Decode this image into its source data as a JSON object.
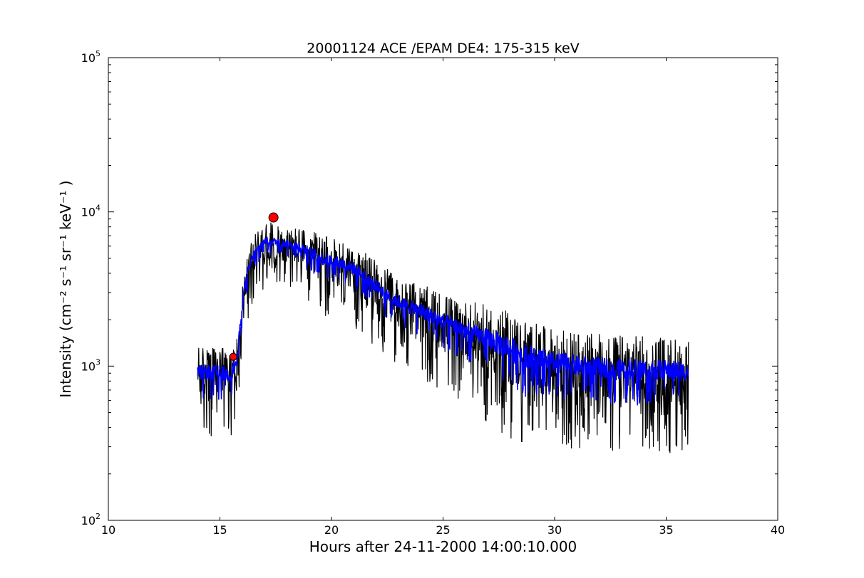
{
  "chart_data": {
    "type": "line",
    "title": "20001124 ACE /EPAM DE4: 175-315 keV",
    "xlabel": "Hours after 24-11-2000 14:00:10.000",
    "ylabel": "Intensity (cm⁻² s⁻¹ sr⁻¹ keV⁻¹ )",
    "xlim": [
      10,
      40
    ],
    "ylim": [
      100,
      100000
    ],
    "yscale": "log",
    "grid": false,
    "xticks": [
      "10",
      "15",
      "20",
      "25",
      "30",
      "35",
      "40"
    ],
    "yticks": [
      {
        "base": "10",
        "exp": "2"
      },
      {
        "base": "10",
        "exp": "3"
      },
      {
        "base": "10",
        "exp": "4"
      },
      {
        "base": "10",
        "exp": "5"
      }
    ],
    "colors": {
      "raw": "#000000",
      "smoothed": "#0000ff",
      "marker": "#ff0000"
    },
    "series": [
      {
        "style": "raw",
        "color": "#000000",
        "envelope": {
          "x": [
            14.0,
            14.5,
            15.0,
            15.5,
            15.8,
            16.0,
            16.2,
            16.5,
            17.0,
            17.5,
            18.0,
            18.5,
            19.0,
            19.5,
            20.0,
            20.5,
            21.0,
            21.5,
            22.0,
            22.5,
            23.0,
            23.5,
            24.0,
            24.5,
            25.0,
            25.5,
            26.0,
            26.5,
            27.0,
            27.5,
            28.0,
            28.5,
            29.0,
            29.5,
            30.0,
            30.5,
            31.0,
            31.5,
            32.0,
            32.5,
            33.0,
            33.5,
            34.0,
            34.5,
            35.0,
            35.5,
            36.0
          ],
          "center": [
            900,
            920,
            900,
            880,
            1100,
            2500,
            3800,
            5200,
            6500,
            6400,
            6200,
            6000,
            5500,
            5000,
            4800,
            4600,
            4300,
            3800,
            3300,
            2900,
            2600,
            2400,
            2300,
            2100,
            1950,
            1850,
            1700,
            1600,
            1500,
            1400,
            1300,
            1200,
            1150,
            1100,
            1050,
            1050,
            1000,
            1000,
            980,
            980,
            960,
            960,
            950,
            950,
            940,
            930,
            920
          ],
          "spread": [
            1.9,
            1.9,
            1.9,
            1.9,
            1.8,
            1.7,
            1.6,
            1.6,
            1.6,
            1.6,
            1.5,
            1.6,
            1.7,
            1.8,
            1.8,
            1.8,
            1.8,
            1.8,
            1.9,
            1.9,
            1.9,
            1.9,
            1.9,
            2.0,
            2.0,
            2.0,
            2.1,
            2.2,
            2.3,
            2.4,
            2.5,
            2.5,
            2.4,
            2.3,
            2.3,
            2.3,
            2.3,
            2.3,
            2.3,
            2.3,
            2.3,
            2.3,
            2.3,
            2.3,
            2.3,
            2.3,
            2.2
          ]
        }
      },
      {
        "style": "smoothed",
        "color": "#0000ff",
        "envelope": {
          "x": [
            14.0,
            14.5,
            15.0,
            15.5,
            15.8,
            16.0,
            16.2,
            16.5,
            17.0,
            17.5,
            18.0,
            18.5,
            19.0,
            19.5,
            20.0,
            20.5,
            21.0,
            21.5,
            22.0,
            22.5,
            23.0,
            23.5,
            24.0,
            24.5,
            25.0,
            25.5,
            26.0,
            26.5,
            27.0,
            27.5,
            28.0,
            28.5,
            29.0,
            29.5,
            30.0,
            30.5,
            31.0,
            31.5,
            32.0,
            32.5,
            33.0,
            33.5,
            34.0,
            34.5,
            35.0,
            35.5,
            36.0
          ],
          "center": [
            900,
            920,
            900,
            880,
            1100,
            2500,
            3800,
            5200,
            6500,
            6400,
            6200,
            6000,
            5500,
            5000,
            4800,
            4600,
            4300,
            3800,
            3300,
            2900,
            2600,
            2400,
            2300,
            2100,
            1950,
            1850,
            1700,
            1600,
            1500,
            1400,
            1300,
            1200,
            1150,
            1100,
            1050,
            1050,
            1000,
            1000,
            980,
            980,
            960,
            960,
            950,
            950,
            940,
            930,
            920
          ],
          "spread": [
            1.25,
            1.25,
            1.25,
            1.25,
            1.25,
            1.2,
            1.15,
            1.15,
            1.12,
            1.12,
            1.12,
            1.15,
            1.18,
            1.2,
            1.2,
            1.2,
            1.2,
            1.2,
            1.2,
            1.22,
            1.22,
            1.22,
            1.25,
            1.25,
            1.25,
            1.28,
            1.3,
            1.3,
            1.35,
            1.4,
            1.45,
            1.45,
            1.4,
            1.35,
            1.35,
            1.35,
            1.35,
            1.35,
            1.35,
            1.35,
            1.35,
            1.35,
            1.35,
            1.35,
            1.35,
            1.35,
            1.3
          ]
        }
      }
    ],
    "markers": [
      {
        "x": 15.6,
        "y": 1150,
        "color": "#ff0000",
        "shape": "circle"
      },
      {
        "x": 17.4,
        "y": 9200,
        "color": "#ff0000",
        "shape": "circle"
      }
    ]
  }
}
